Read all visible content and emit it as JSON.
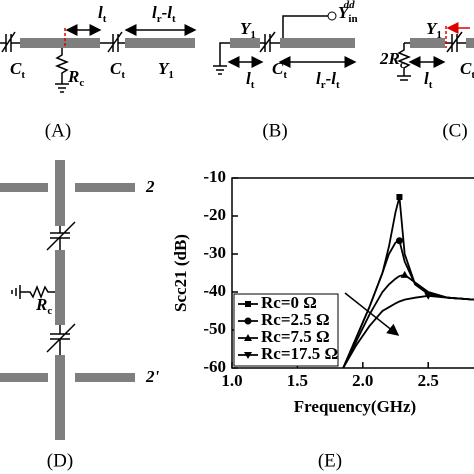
{
  "panel_labels": [
    "(A)",
    "(B)",
    "(C)",
    "(D)",
    "(E)"
  ],
  "diagram_text": [
    {
      "parts": [
        "l",
        "t"
      ]
    },
    {
      "parts": [
        "l",
        "r",
        "-l",
        "t"
      ]
    },
    {
      "parts": [
        "C",
        "t"
      ]
    },
    {
      "parts": [
        "R",
        "c"
      ]
    },
    {
      "parts": [
        "C",
        "t"
      ]
    },
    {
      "parts": [
        "Y",
        "1"
      ]
    },
    {
      "parts": [
        "Y",
        "1"
      ]
    },
    {
      "parts": [
        "Y",
        "in"
      ],
      "sup": "dd"
    },
    {
      "parts": [
        "C",
        "t"
      ]
    },
    {
      "parts": [
        "l",
        "t"
      ]
    },
    {
      "parts": [
        "l",
        "r",
        "-l",
        "t"
      ]
    },
    {
      "parts": [
        "Y",
        "1"
      ]
    },
    {
      "parts": [
        "2R",
        "c"
      ]
    },
    {
      "parts": [
        "l",
        "t"
      ]
    },
    {
      "parts": [
        "C",
        "t"
      ]
    },
    {
      "parts": [
        "R",
        "c"
      ]
    },
    {
      "parts": [
        "2"
      ]
    },
    {
      "parts": [
        "2'"
      ]
    }
  ],
  "chart_data": {
    "type": "line",
    "x_label": "Frequency(GHz)",
    "y_label": "Scc21 (dB)",
    "x": [
      1.85,
      1.95,
      2.05,
      2.15,
      2.2,
      2.25,
      2.28,
      2.32,
      2.4,
      2.5,
      2.65,
      2.85
    ],
    "series": [
      {
        "name": "Rc=0 Ω",
        "color": "#000000",
        "marker": "square",
        "values": [
          -60,
          -52,
          -44,
          -35,
          -28,
          -19,
          -15,
          -30,
          -38,
          -40.5,
          -41.5,
          -42
        ]
      },
      {
        "name": "Rc=2.5 Ω",
        "color": "#000000",
        "marker": "circle",
        "values": [
          -60,
          -52,
          -44,
          -35,
          -30,
          -27,
          -26.5,
          -32,
          -38,
          -40.5,
          -41.5,
          -42
        ]
      },
      {
        "name": "Rc=7.5 Ω",
        "color": "#000000",
        "marker": "triangle-up",
        "values": [
          -60,
          -53,
          -46,
          -40,
          -38,
          -36.5,
          -35.8,
          -35.5,
          -37.5,
          -40,
          -41.5,
          -42
        ]
      },
      {
        "name": "Rc=17.5 Ω",
        "color": "#000000",
        "marker": "triangle-down",
        "values": [
          -60,
          -54,
          -49,
          -45,
          -44,
          -43,
          -42.5,
          -42,
          -41.5,
          -41,
          -41.5,
          -42
        ]
      }
    ],
    "xlim": [
      1.0,
      2.85
    ],
    "ylim": [
      -60,
      -10
    ],
    "xticks": [
      {
        "value": 1,
        "label": "1.0"
      },
      1.5,
      {
        "value": 2,
        "label": "2.0"
      },
      2.5
    ],
    "yticks": [
      -10,
      -20,
      -30,
      -40,
      -50,
      -60
    ],
    "legend": "lower-left"
  }
}
